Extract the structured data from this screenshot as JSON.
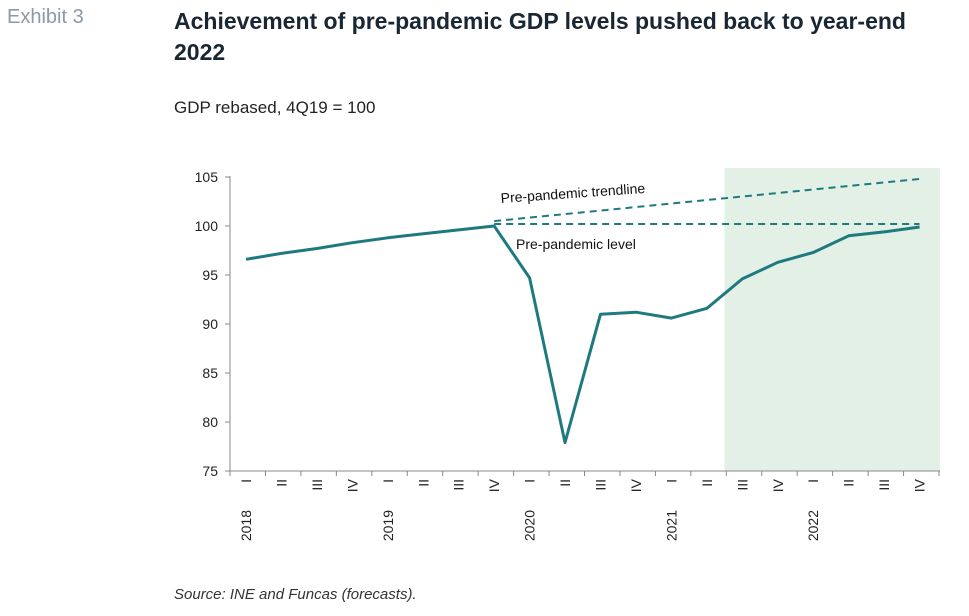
{
  "header": {
    "exhibit": "Exhibit 3",
    "title": "Achievement of pre-pandemic GDP levels pushed back to year-end 2022",
    "subtitle": "GDP rebased, 4Q19 = 100"
  },
  "footer": {
    "source": "Source: INE and Funcas (forecasts)."
  },
  "colors": {
    "series": "#1f7a80",
    "forecast_band": "#e2f0e6",
    "axis": "#888888"
  },
  "chart_data": {
    "type": "line",
    "ylim": [
      75,
      105
    ],
    "yticks": [
      "105",
      "100",
      "95",
      "90",
      "85",
      "80",
      "75"
    ],
    "yticks_values": [
      105,
      100,
      95,
      90,
      85,
      80,
      75
    ],
    "x": [
      "I",
      "II",
      "III",
      "IV",
      "I",
      "II",
      "III",
      "IV",
      "I",
      "II",
      "III",
      "IV",
      "I",
      "II",
      "III",
      "IV",
      "I",
      "II",
      "III",
      "IV"
    ],
    "years": [
      {
        "label": "2018",
        "start_index": 0
      },
      {
        "label": "2019",
        "start_index": 4
      },
      {
        "label": "2020",
        "start_index": 8
      },
      {
        "label": "2021",
        "start_index": 12
      },
      {
        "label": "2022",
        "start_index": 16
      }
    ],
    "series": [
      {
        "values": [
          96.6,
          97.2,
          97.7,
          98.3,
          98.8,
          99.2,
          99.6,
          100.0,
          94.7,
          77.9,
          91.0,
          91.2,
          90.6,
          91.6,
          94.6,
          96.3,
          97.3,
          99.0,
          99.4,
          99.9
        ]
      }
    ],
    "forecast_from_index": 14,
    "reference_lines": [
      {
        "label": "Pre-pandemic trendline",
        "from_index": 7,
        "to_index": 19,
        "from_value": 100.5,
        "to_value": 104.8
      },
      {
        "label": "Pre-pandemic level",
        "from_index": 7,
        "to_index": 19,
        "from_value": 100.2,
        "to_value": 100.2
      }
    ]
  }
}
